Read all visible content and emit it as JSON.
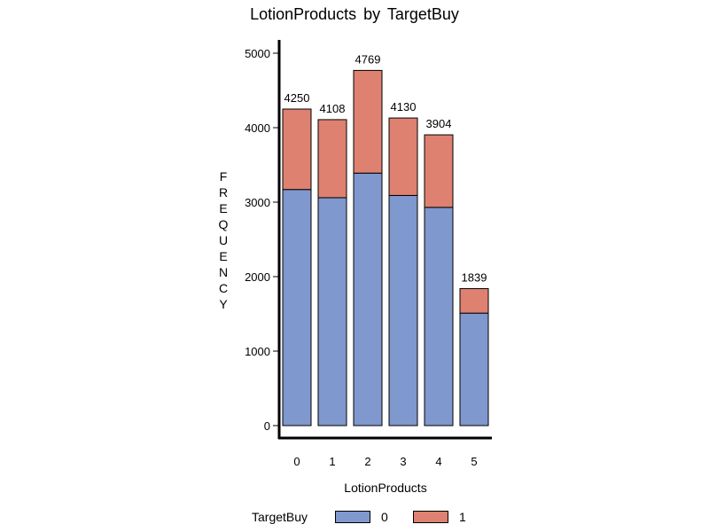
{
  "chart_data": {
    "type": "bar",
    "stacked": true,
    "title": "LotionProducts by TargetBuy",
    "xlabel": "LotionProducts",
    "ylabel": "FREQUENCY",
    "categories": [
      "0",
      "1",
      "2",
      "3",
      "4",
      "5"
    ],
    "series": [
      {
        "name": "0",
        "color": "#7f98cd",
        "values": [
          3170,
          3060,
          3390,
          3090,
          2930,
          1510
        ]
      },
      {
        "name": "1",
        "color": "#de8170",
        "values": [
          1080,
          1048,
          1379,
          1040,
          974,
          329
        ]
      }
    ],
    "totals": [
      4250,
      4108,
      4769,
      4130,
      3904,
      1839
    ],
    "totals_labels": [
      "4250",
      "4108",
      "4769",
      "4130",
      "3904",
      "1839"
    ],
    "ylim": [
      0,
      5000
    ],
    "yticks": [
      0,
      1000,
      2000,
      3000,
      4000,
      5000
    ],
    "yticks_labels": [
      "0",
      "1000",
      "2000",
      "3000",
      "4000",
      "5000"
    ],
    "grid": false,
    "legend": {
      "title": "TargetBuy",
      "position": "bottom",
      "labels": [
        "0",
        "1"
      ]
    }
  }
}
